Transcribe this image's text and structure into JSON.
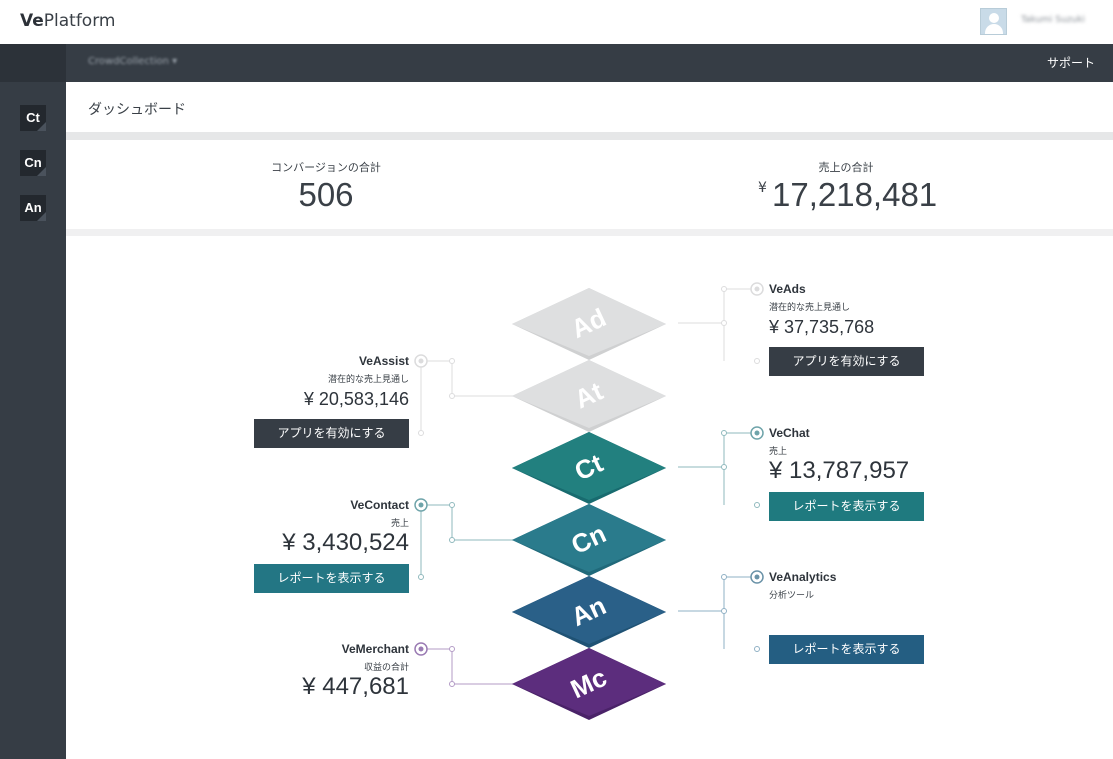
{
  "header": {
    "logo_bold": "Ve",
    "logo_rest": "Platform",
    "username": "Takumi Suzuki"
  },
  "subheader": {
    "app_switcher": "CrowdCollection ▾",
    "support_label": "サポート"
  },
  "sidebar": {
    "items": [
      {
        "label": "Ct"
      },
      {
        "label": "Cn"
      },
      {
        "label": "An"
      }
    ]
  },
  "page": {
    "title": "ダッシュボード"
  },
  "totals": {
    "conversions_label": "コンバージョンの合計",
    "conversions_value": "506",
    "sales_label": "売上の合計",
    "sales_currency": "¥",
    "sales_value": "17,218,481"
  },
  "apps": {
    "veads": {
      "name": "VeAds",
      "sub": "潜在的な売上見通し",
      "value": "¥ 37,735,768",
      "button": "アプリを有効にする",
      "tile": "Ad"
    },
    "veassist": {
      "name": "VeAssist",
      "sub": "潜在的な売上見通し",
      "value": "¥ 20,583,146",
      "button": "アプリを有効にする",
      "tile": "At"
    },
    "vechat": {
      "name": "VeChat",
      "sub": "売上",
      "value": "¥ 13,787,957",
      "button": "レポートを表示する",
      "tile": "Ct"
    },
    "vecontact": {
      "name": "VeContact",
      "sub": "売上",
      "value": "¥ 3,430,524",
      "button": "レポートを表示する",
      "tile": "Cn"
    },
    "veanalytics": {
      "name": "VeAnalytics",
      "sub": "分析ツール",
      "button": "レポートを表示する",
      "tile": "An"
    },
    "vemerchant": {
      "name": "VeMerchant",
      "sub": "収益の合計",
      "value": "¥ 447,681",
      "tile": "Mc"
    }
  },
  "colors": {
    "sidebar": "#363d45",
    "tile_inactive": "#dcdcdd",
    "tile_chat": "#1f7a7f",
    "tile_contact": "#267a8a",
    "tile_analytics": "#245e82",
    "tile_merchant": "#5a2d7c"
  }
}
